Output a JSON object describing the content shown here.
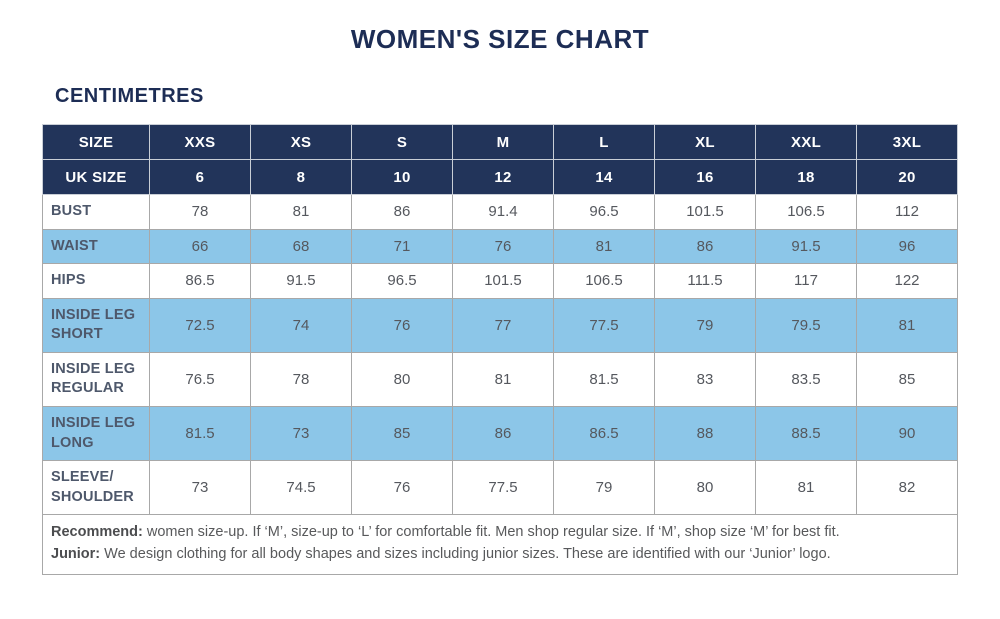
{
  "page": {
    "title": "WOMEN'S SIZE CHART",
    "subtitle": "CENTIMETRES"
  },
  "colors": {
    "navy": "#22345a",
    "title": "#1d2d55",
    "blue": "#8cc6e8",
    "label": "#4e586b",
    "value": "#55585e",
    "note": "#58595b"
  },
  "chart_data": {
    "type": "table",
    "header_row": {
      "label": "SIZE",
      "values": [
        "XXS",
        "XS",
        "S",
        "M",
        "L",
        "XL",
        "XXL",
        "3XL"
      ]
    },
    "uk_size_row": {
      "label": "UK SIZE",
      "values": [
        "6",
        "8",
        "10",
        "12",
        "14",
        "16",
        "18",
        "20"
      ]
    },
    "rows": [
      {
        "label": "BUST",
        "values": [
          "78",
          "81",
          "86",
          "91.4",
          "96.5",
          "101.5",
          "106.5",
          "112"
        ]
      },
      {
        "label": "WAIST",
        "values": [
          "66",
          "68",
          "71",
          "76",
          "81",
          "86",
          "91.5",
          "96"
        ]
      },
      {
        "label": "HIPS",
        "values": [
          "86.5",
          "91.5",
          "96.5",
          "101.5",
          "106.5",
          "111.5",
          "117",
          "122"
        ]
      },
      {
        "label": "INSIDE LEG\nSHORT",
        "values": [
          "72.5",
          "74",
          "76",
          "77",
          "77.5",
          "79",
          "79.5",
          "81"
        ]
      },
      {
        "label": "INSIDE LEG\nREGULAR",
        "values": [
          "76.5",
          "78",
          "80",
          "81",
          "81.5",
          "83",
          "83.5",
          "85"
        ]
      },
      {
        "label": "INSIDE LEG\nLONG",
        "values": [
          "81.5",
          "73",
          "85",
          "86",
          "86.5",
          "88",
          "88.5",
          "90"
        ]
      },
      {
        "label": "SLEEVE/\nSHOULDER",
        "values": [
          "73",
          "74.5",
          "76",
          "77.5",
          "79",
          "80",
          "81",
          "82"
        ]
      }
    ],
    "notes": {
      "line1_bold": "Recommend:",
      "line1_text": " women size-up. If ‘M’, size-up to ‘L’ for comfortable fit. Men shop regular size. If ‘M’, shop size ‘M’ for best fit.",
      "line2_bold": "Junior:",
      "line2_text": " We design clothing for all body shapes and sizes including junior sizes. These are identified with our ‘Junior’ logo."
    }
  }
}
